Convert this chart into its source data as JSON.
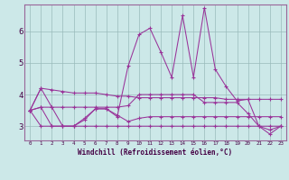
{
  "bg_color": "#cce8e8",
  "line_color": "#993399",
  "grid_color": "#99bbbb",
  "xlabel": "Windchill (Refroidissement éolien,°C)",
  "x_ticks": [
    0,
    1,
    2,
    3,
    4,
    5,
    6,
    7,
    8,
    9,
    10,
    11,
    12,
    13,
    14,
    15,
    16,
    17,
    18,
    19,
    20,
    21,
    22,
    23
  ],
  "y_ticks": [
    3,
    4,
    5,
    6
  ],
  "ylim": [
    2.55,
    6.85
  ],
  "xlim": [
    -0.5,
    23.5
  ],
  "series": [
    [
      3.5,
      4.2,
      4.15,
      4.1,
      4.05,
      4.05,
      4.05,
      4.0,
      3.95,
      3.95,
      3.9,
      3.9,
      3.9,
      3.9,
      3.9,
      3.9,
      3.9,
      3.9,
      3.85,
      3.85,
      3.85,
      3.85,
      3.85,
      3.85
    ],
    [
      3.5,
      4.2,
      3.6,
      3.6,
      3.6,
      3.6,
      3.6,
      3.6,
      3.6,
      3.65,
      4.0,
      4.0,
      4.0,
      4.0,
      4.0,
      4.0,
      3.75,
      3.75,
      3.75,
      3.75,
      3.4,
      3.0,
      2.88,
      3.0
    ],
    [
      3.5,
      3.0,
      3.0,
      3.0,
      3.0,
      3.0,
      3.0,
      3.0,
      3.0,
      3.0,
      3.0,
      3.0,
      3.0,
      3.0,
      3.0,
      3.0,
      3.0,
      3.0,
      3.0,
      3.0,
      3.0,
      3.0,
      3.0,
      3.0
    ],
    [
      3.5,
      3.6,
      3.0,
      3.0,
      3.0,
      3.25,
      3.55,
      3.55,
      3.35,
      3.15,
      3.25,
      3.3,
      3.3,
      3.3,
      3.3,
      3.3,
      3.3,
      3.3,
      3.3,
      3.3,
      3.3,
      3.3,
      3.3,
      3.3
    ],
    [
      3.5,
      3.6,
      3.6,
      3.0,
      3.0,
      3.2,
      3.55,
      3.55,
      3.3,
      4.9,
      5.9,
      6.1,
      5.35,
      4.55,
      6.5,
      4.55,
      6.75,
      4.8,
      4.25,
      3.8,
      3.85,
      3.0,
      2.75,
      3.0
    ]
  ]
}
